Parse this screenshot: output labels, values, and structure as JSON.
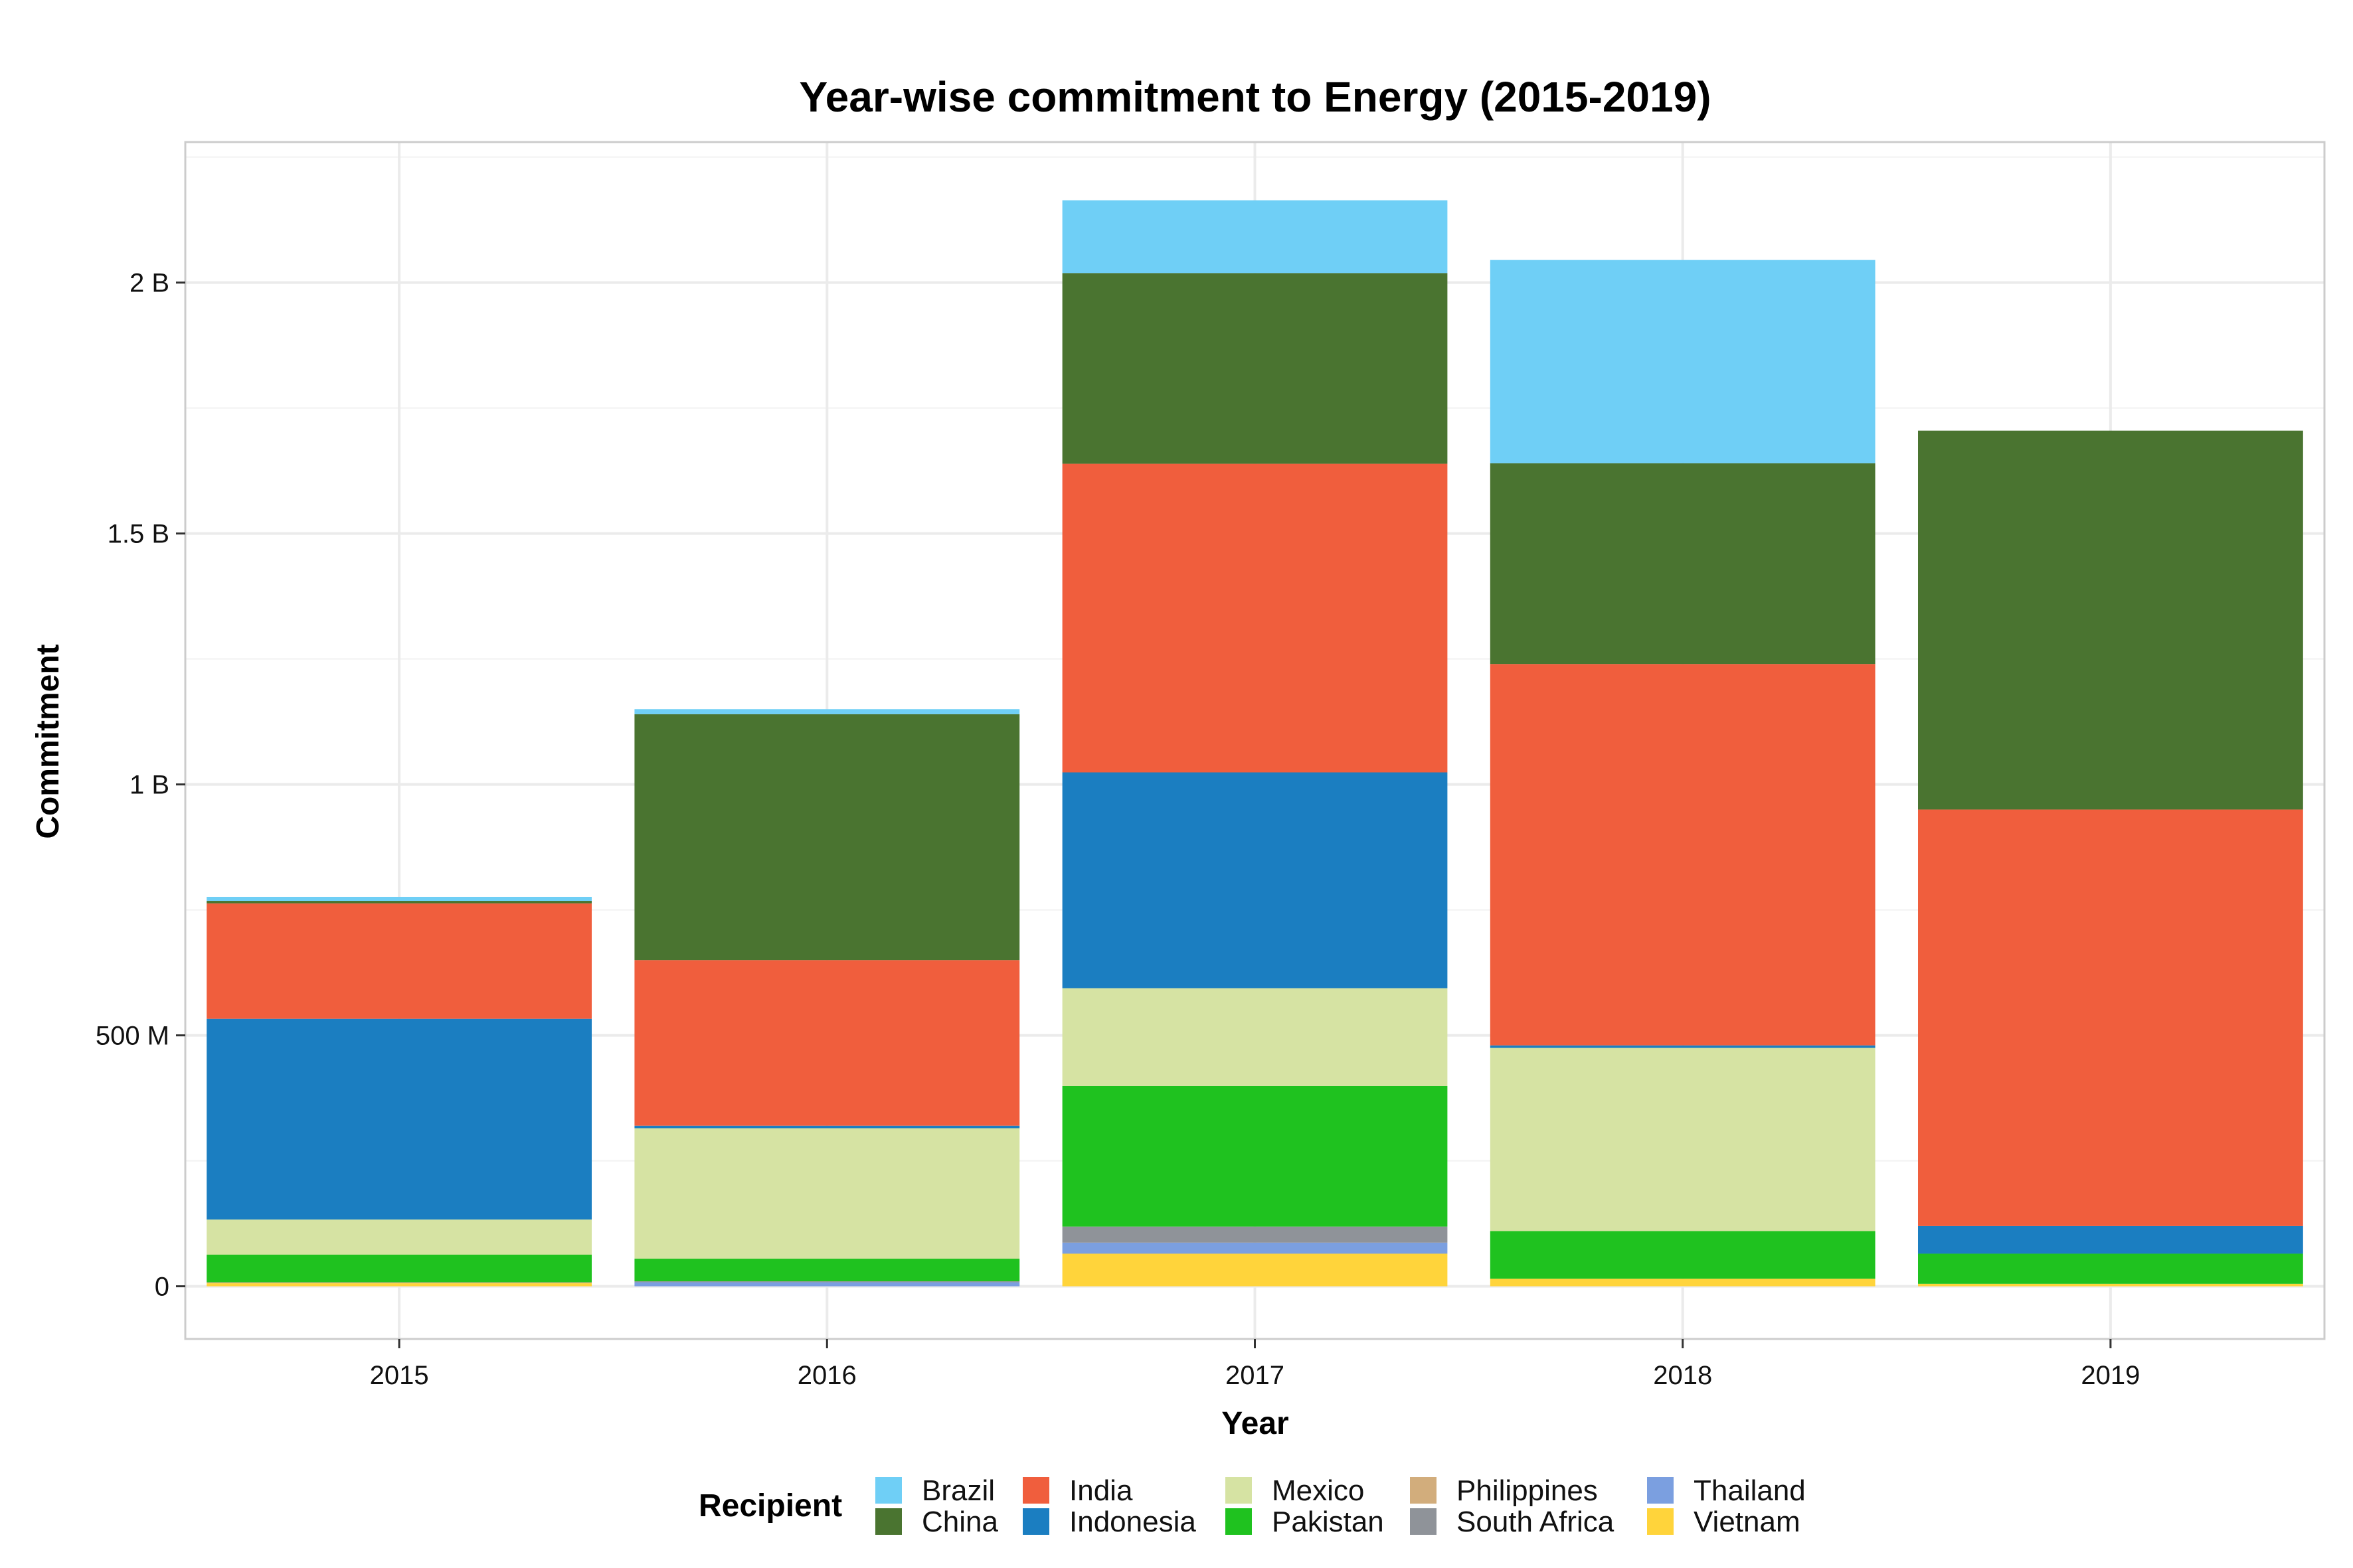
{
  "chart_data": {
    "type": "bar",
    "stacked": true,
    "title": "Year-wise commitment to Energy (2015-2019)",
    "xlabel": "Year",
    "ylabel": "Commitment",
    "categories": [
      "2015",
      "2016",
      "2017",
      "2018",
      "2019"
    ],
    "ylim": [
      -105000000,
      2280000000
    ],
    "yticks": [
      0,
      500000000,
      1000000000,
      1500000000,
      2000000000
    ],
    "ytick_labels": [
      "0",
      "500 M",
      "1 B",
      "1.5 B",
      "2 B"
    ],
    "grid": true,
    "legend_title": "Recipient",
    "legend_position": "bottom",
    "series": [
      {
        "name": "Vietnam",
        "color": "#FFD43B",
        "values": [
          6000000,
          0,
          65000000,
          15000000,
          5000000
        ]
      },
      {
        "name": "Thailand",
        "color": "#7B9FE0",
        "values": [
          0,
          8000000,
          22000000,
          0,
          0
        ]
      },
      {
        "name": "South Africa",
        "color": "#8F9399",
        "values": [
          0,
          2000000,
          32000000,
          0,
          0
        ]
      },
      {
        "name": "Philippines",
        "color": "#D2AD7C",
        "values": [
          2000000,
          0,
          0,
          0,
          0
        ]
      },
      {
        "name": "Pakistan",
        "color": "#1FC21F",
        "values": [
          55000000,
          45000000,
          280000000,
          95000000,
          60000000
        ]
      },
      {
        "name": "Mexico",
        "color": "#D6E3A3",
        "values": [
          70000000,
          260000000,
          195000000,
          365000000,
          0
        ]
      },
      {
        "name": "Indonesia",
        "color": "#1B7EC1",
        "values": [
          400000000,
          5000000,
          430000000,
          5000000,
          55000000
        ]
      },
      {
        "name": "India",
        "color": "#F05E3D",
        "values": [
          230000000,
          330000000,
          615000000,
          760000000,
          830000000
        ]
      },
      {
        "name": "China",
        "color": "#4A7430",
        "values": [
          5000000,
          490000000,
          380000000,
          400000000,
          755000000
        ]
      },
      {
        "name": "Brazil",
        "color": "#6FCFF6",
        "values": [
          8000000,
          10000000,
          145000000,
          405000000,
          0
        ]
      }
    ],
    "legend_order": [
      "Brazil",
      "China",
      "India",
      "Indonesia",
      "Mexico",
      "Pakistan",
      "Philippines",
      "South Africa",
      "Thailand",
      "Vietnam"
    ]
  }
}
